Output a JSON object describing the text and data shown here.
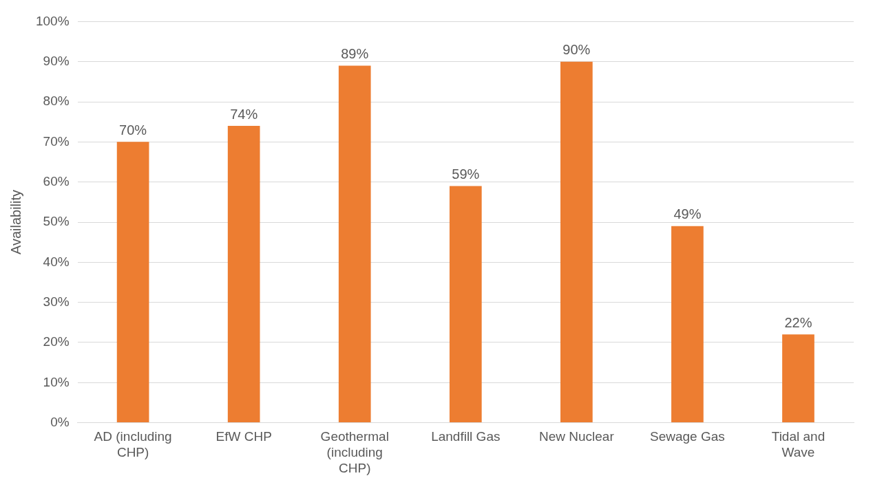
{
  "chart_data": {
    "type": "bar",
    "ylabel": "Availability",
    "categories": [
      "AD (including CHP)",
      "EfW CHP",
      "Geothermal (including CHP)",
      "Landfill Gas",
      "New Nuclear",
      "Sewage Gas",
      "Tidal and Wave"
    ],
    "values": [
      70,
      74,
      89,
      59,
      90,
      49,
      22
    ],
    "value_labels": [
      "70%",
      "74%",
      "89%",
      "59%",
      "90%",
      "49%",
      "22%"
    ],
    "color": "#ed7d31",
    "ylim": [
      0,
      100
    ],
    "yticks": [
      {
        "value": 0,
        "label": "0%"
      },
      {
        "value": 10,
        "label": "10%"
      },
      {
        "value": 20,
        "label": "20%"
      },
      {
        "value": 30,
        "label": "30%"
      },
      {
        "value": 40,
        "label": "40%"
      },
      {
        "value": 50,
        "label": "50%"
      },
      {
        "value": 60,
        "label": "60%"
      },
      {
        "value": 70,
        "label": "70%"
      },
      {
        "value": 80,
        "label": "80%"
      },
      {
        "value": 90,
        "label": "90%"
      },
      {
        "value": 100,
        "label": "100%"
      }
    ],
    "grid": "y",
    "legend": false
  }
}
